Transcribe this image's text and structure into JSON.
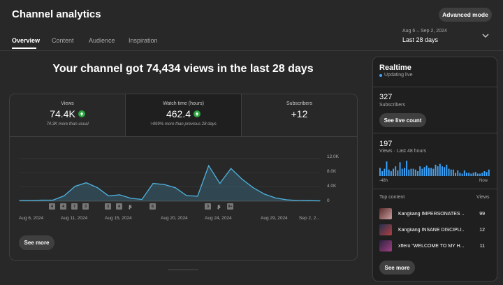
{
  "header": {
    "title": "Channel analytics",
    "advanced_mode": "Advanced mode"
  },
  "tabs": [
    "Overview",
    "Content",
    "Audience",
    "Inspiration"
  ],
  "date": {
    "range": "Aug 6 – Sep 2, 2024",
    "label": "Last 28 days"
  },
  "headline": "Your channel got 74,434 views in the last 28 days",
  "metrics": [
    {
      "label": "Views",
      "value": "74.4K",
      "sub": "74.3K more than usual"
    },
    {
      "label": "Watch time (hours)",
      "value": "462.4",
      "sub": ">999% more than previous 28 days"
    },
    {
      "label": "Subscribers",
      "value": "+12",
      "sub": ""
    }
  ],
  "see_more": "See more",
  "chart_data": {
    "type": "line",
    "x_tick_labels": [
      "Aug 6, 2024",
      "Aug 11, 2024",
      "Aug 15, 2024",
      "Aug 20, 2024",
      "Aug 24, 2024",
      "Aug 29, 2024",
      "Sep 2, 2..."
    ],
    "y_tick_labels": [
      "12.0K",
      "8.0K",
      "4.0K",
      "0"
    ],
    "ylim": [
      0,
      12000
    ],
    "x": [
      1,
      2,
      3,
      4,
      5,
      6,
      7,
      8,
      9,
      10,
      11,
      12,
      13,
      14,
      15,
      16,
      17,
      18,
      19,
      20,
      21,
      22,
      23,
      24,
      25,
      26,
      27,
      28
    ],
    "values": [
      200,
      200,
      300,
      300,
      1500,
      4200,
      5200,
      3800,
      1500,
      1800,
      800,
      500,
      5000,
      4700,
      3800,
      1600,
      1400,
      10000,
      5000,
      9200,
      6200,
      3800,
      2000,
      900,
      400,
      200,
      150,
      100
    ],
    "grid": true,
    "color": "#4fb3e0",
    "markers": [
      "4",
      "4",
      "7",
      "3",
      "3",
      "4",
      "",
      "6",
      "3",
      "",
      "9+"
    ]
  },
  "realtime": {
    "title": "Realtime",
    "status": "Updating live",
    "subscribers_count": "327",
    "subscribers_label": "Subscribers",
    "see_live_count": "See live count",
    "views_count": "197",
    "views_label": "Views · Last 48 hours",
    "axis_start": "-48h",
    "axis_end": "Now",
    "bars": [
      10,
      6,
      9,
      18,
      8,
      6,
      9,
      12,
      7,
      17,
      9,
      10,
      19,
      8,
      9,
      9,
      8,
      6,
      12,
      9,
      11,
      13,
      10,
      10,
      9,
      14,
      12,
      15,
      12,
      11,
      14,
      9,
      8,
      8,
      4,
      7,
      4,
      3,
      7,
      4,
      4,
      3,
      4,
      5,
      3,
      3,
      4,
      6,
      5,
      8
    ],
    "top_content_label": "Top content",
    "top_content_col": "Views",
    "videos": [
      {
        "title": "Kangkang IMPERSONATES ...",
        "views": "99"
      },
      {
        "title": "Kangkang INSANE DISCIPLI...",
        "views": "12"
      },
      {
        "title": "xffero \"WELCOME TO MY H...",
        "views": "11"
      }
    ],
    "see_more": "See more"
  }
}
